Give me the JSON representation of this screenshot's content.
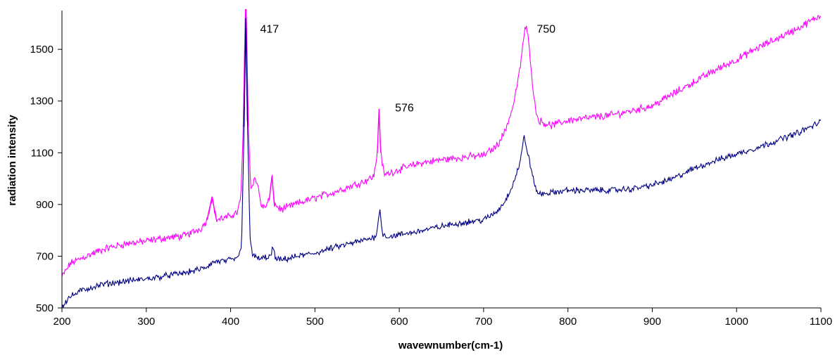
{
  "chart_data": {
    "type": "line",
    "xlabel": "wavewnumber(cm-1)",
    "ylabel": "radiation intensity",
    "xlim": [
      200,
      1100
    ],
    "ylim": [
      500,
      1650
    ],
    "xticks": [
      200,
      300,
      400,
      500,
      600,
      700,
      800,
      900,
      1000,
      1100
    ],
    "yticks": [
      500,
      700,
      900,
      1100,
      1300,
      1500
    ],
    "grid": false,
    "legend": "none",
    "annotations": [
      {
        "text": "417",
        "x": 435,
        "y": 1565
      },
      {
        "text": "576",
        "x": 595,
        "y": 1260
      },
      {
        "text": "750",
        "x": 763,
        "y": 1565
      }
    ],
    "series": [
      {
        "color": "#ff00ff",
        "noise": 22,
        "points": [
          [
            200,
            620
          ],
          [
            210,
            672
          ],
          [
            225,
            695
          ],
          [
            250,
            728
          ],
          [
            275,
            748
          ],
          [
            300,
            758
          ],
          [
            325,
            772
          ],
          [
            345,
            778
          ],
          [
            365,
            808
          ],
          [
            372,
            840
          ],
          [
            378,
            930
          ],
          [
            383,
            842
          ],
          [
            395,
            848
          ],
          [
            408,
            870
          ],
          [
            412,
            920
          ],
          [
            415,
            1200
          ],
          [
            418,
            1720
          ],
          [
            421,
            1200
          ],
          [
            424,
            960
          ],
          [
            428,
            1000
          ],
          [
            432,
            980
          ],
          [
            436,
            900
          ],
          [
            440,
            885
          ],
          [
            446,
            920
          ],
          [
            449,
            1010
          ],
          [
            452,
            900
          ],
          [
            460,
            880
          ],
          [
            480,
            905
          ],
          [
            500,
            925
          ],
          [
            520,
            945
          ],
          [
            540,
            968
          ],
          [
            560,
            992
          ],
          [
            570,
            1010
          ],
          [
            574,
            1100
          ],
          [
            576,
            1270
          ],
          [
            578,
            1100
          ],
          [
            582,
            1015
          ],
          [
            600,
            1035
          ],
          [
            625,
            1060
          ],
          [
            650,
            1073
          ],
          [
            675,
            1082
          ],
          [
            700,
            1090
          ],
          [
            715,
            1125
          ],
          [
            725,
            1180
          ],
          [
            735,
            1280
          ],
          [
            743,
            1420
          ],
          [
            748,
            1560
          ],
          [
            751,
            1590
          ],
          [
            755,
            1480
          ],
          [
            760,
            1300
          ],
          [
            765,
            1225
          ],
          [
            780,
            1205
          ],
          [
            800,
            1225
          ],
          [
            825,
            1235
          ],
          [
            850,
            1245
          ],
          [
            875,
            1262
          ],
          [
            900,
            1282
          ],
          [
            925,
            1328
          ],
          [
            950,
            1375
          ],
          [
            975,
            1420
          ],
          [
            1000,
            1460
          ],
          [
            1025,
            1505
          ],
          [
            1050,
            1545
          ],
          [
            1075,
            1585
          ],
          [
            1100,
            1632
          ]
        ]
      },
      {
        "color": "#000080",
        "noise": 18,
        "points": [
          [
            200,
            505
          ],
          [
            208,
            540
          ],
          [
            225,
            570
          ],
          [
            250,
            592
          ],
          [
            275,
            603
          ],
          [
            300,
            612
          ],
          [
            325,
            625
          ],
          [
            350,
            638
          ],
          [
            370,
            655
          ],
          [
            380,
            678
          ],
          [
            395,
            682
          ],
          [
            408,
            690
          ],
          [
            413,
            740
          ],
          [
            416,
            1200
          ],
          [
            418,
            1620
          ],
          [
            420,
            1220
          ],
          [
            423,
            780
          ],
          [
            426,
            700
          ],
          [
            435,
            690
          ],
          [
            448,
            700
          ],
          [
            450,
            740
          ],
          [
            453,
            690
          ],
          [
            460,
            685
          ],
          [
            480,
            700
          ],
          [
            500,
            712
          ],
          [
            525,
            735
          ],
          [
            550,
            755
          ],
          [
            565,
            768
          ],
          [
            572,
            775
          ],
          [
            575,
            835
          ],
          [
            577,
            878
          ],
          [
            580,
            790
          ],
          [
            585,
            775
          ],
          [
            600,
            782
          ],
          [
            625,
            798
          ],
          [
            650,
            815
          ],
          [
            675,
            830
          ],
          [
            700,
            840
          ],
          [
            715,
            870
          ],
          [
            725,
            910
          ],
          [
            735,
            980
          ],
          [
            743,
            1060
          ],
          [
            748,
            1160
          ],
          [
            751,
            1120
          ],
          [
            755,
            1060
          ],
          [
            760,
            980
          ],
          [
            765,
            940
          ],
          [
            780,
            945
          ],
          [
            800,
            955
          ],
          [
            825,
            955
          ],
          [
            850,
            955
          ],
          [
            875,
            960
          ],
          [
            900,
            975
          ],
          [
            925,
            1000
          ],
          [
            950,
            1040
          ],
          [
            975,
            1070
          ],
          [
            1000,
            1095
          ],
          [
            1025,
            1120
          ],
          [
            1050,
            1150
          ],
          [
            1075,
            1180
          ],
          [
            1100,
            1220
          ]
        ]
      }
    ]
  }
}
